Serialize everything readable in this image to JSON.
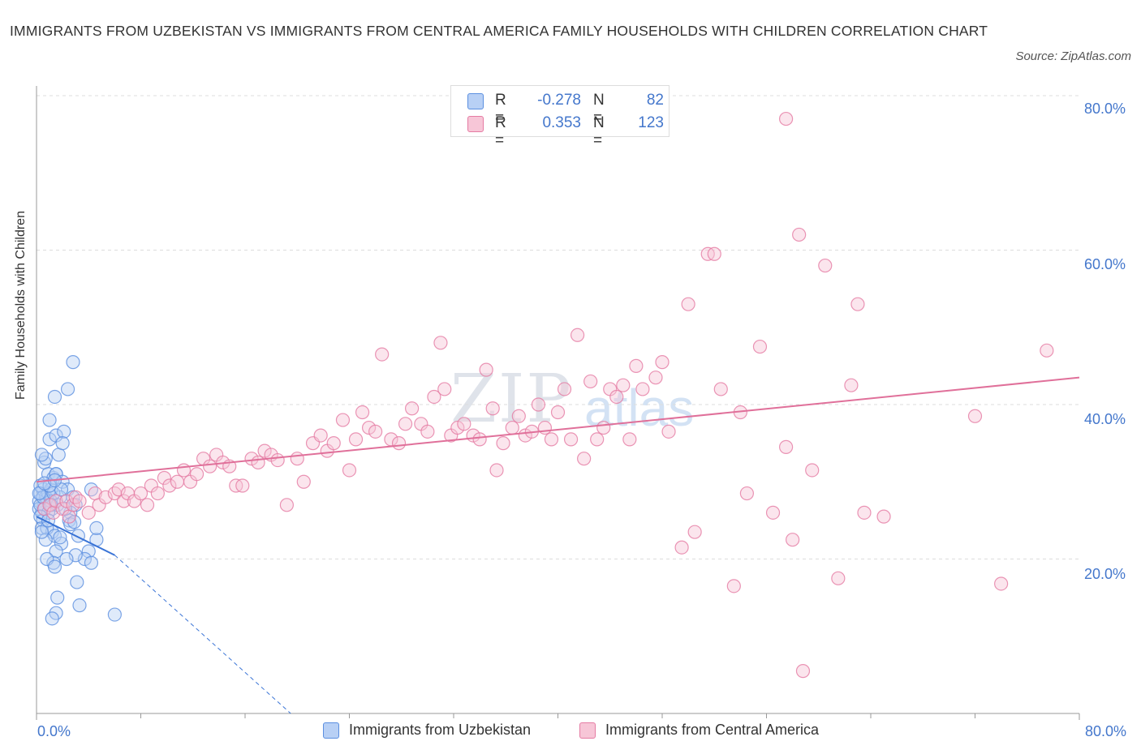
{
  "title": "IMMIGRANTS FROM UZBEKISTAN VS IMMIGRANTS FROM CENTRAL AMERICA FAMILY HOUSEHOLDS WITH CHILDREN CORRELATION CHART",
  "source": "Source: ZipAtlas.com",
  "watermark": {
    "zip": "ZIP",
    "atlas": "atlas"
  },
  "colors": {
    "blue": "#5b8fe0",
    "blue_fill": "#b8d0f5",
    "pink": "#e57ba3",
    "pink_fill": "#f7c6d7",
    "tick": "#4477cc",
    "grid": "#dddddd"
  },
  "legend": {
    "rows": [
      {
        "r_label": "R =",
        "r_value": "-0.278",
        "n_label": "N =",
        "n_value": "82"
      },
      {
        "r_label": "R =",
        "r_value": "0.353",
        "n_label": "N =",
        "n_value": "123"
      }
    ],
    "bottom": [
      "Immigrants from Uzbekistan",
      "Immigrants from Central America"
    ]
  },
  "axes": {
    "ylabel": "Family Households with Children",
    "x_left": "0.0%",
    "x_right": "80.0%",
    "y_ticks": [
      "80.0%",
      "60.0%",
      "40.0%",
      "20.0%"
    ]
  },
  "chart_data": {
    "type": "scatter",
    "xlim": [
      0,
      80
    ],
    "ylim": [
      0,
      80
    ],
    "ylabel": "Family Households with Children",
    "grid": true,
    "legend_placement": "top-center",
    "series": [
      {
        "name": "Immigrants from Uzbekistan",
        "color": "#5b8fe0",
        "trend": {
          "x": [
            0,
            6
          ],
          "y": [
            25.5,
            20.5
          ],
          "dashed_extension_to": [
            19.5,
            0
          ]
        },
        "points": [
          [
            0.2,
            27.5
          ],
          [
            0.3,
            28.5
          ],
          [
            0.4,
            26.0
          ],
          [
            0.5,
            29.0
          ],
          [
            0.6,
            27.0
          ],
          [
            0.7,
            28.0
          ],
          [
            0.3,
            29.5
          ],
          [
            0.2,
            26.5
          ],
          [
            0.5,
            25.0
          ],
          [
            0.8,
            27.8
          ],
          [
            0.4,
            24.0
          ],
          [
            0.9,
            28.5
          ],
          [
            1.0,
            27.0
          ],
          [
            1.2,
            26.5
          ],
          [
            1.1,
            29.0
          ],
          [
            0.6,
            32.5
          ],
          [
            0.7,
            33.0
          ],
          [
            0.4,
            33.5
          ],
          [
            0.9,
            31.0
          ],
          [
            1.3,
            30.5
          ],
          [
            1.5,
            31.0
          ],
          [
            1.7,
            33.5
          ],
          [
            1.0,
            35.5
          ],
          [
            1.5,
            36.0
          ],
          [
            2.1,
            36.5
          ],
          [
            2.0,
            35.0
          ],
          [
            1.0,
            38.0
          ],
          [
            1.4,
            41.0
          ],
          [
            2.4,
            42.0
          ],
          [
            2.8,
            45.5
          ],
          [
            1.5,
            31.0
          ],
          [
            2.0,
            30.0
          ],
          [
            2.4,
            29.0
          ],
          [
            2.8,
            28.0
          ],
          [
            3.0,
            27.0
          ],
          [
            2.6,
            26.0
          ],
          [
            1.8,
            28.0
          ],
          [
            1.2,
            23.5
          ],
          [
            0.8,
            24.0
          ],
          [
            1.4,
            23.0
          ],
          [
            1.9,
            22.0
          ],
          [
            2.5,
            25.0
          ],
          [
            3.2,
            23.0
          ],
          [
            4.6,
            22.5
          ],
          [
            4.6,
            24.0
          ],
          [
            4.0,
            21.0
          ],
          [
            3.7,
            20.0
          ],
          [
            3.0,
            20.5
          ],
          [
            2.3,
            20.0
          ],
          [
            1.5,
            21.0
          ],
          [
            1.3,
            19.5
          ],
          [
            0.8,
            20.0
          ],
          [
            1.4,
            19.0
          ],
          [
            3.1,
            17.0
          ],
          [
            1.6,
            15.0
          ],
          [
            3.3,
            14.0
          ],
          [
            1.5,
            13.0
          ],
          [
            1.2,
            12.3
          ],
          [
            6.0,
            12.8
          ],
          [
            4.2,
            19.5
          ],
          [
            0.3,
            27.0
          ],
          [
            0.6,
            26.5
          ],
          [
            0.9,
            26.0
          ],
          [
            1.1,
            27.5
          ],
          [
            1.6,
            27.0
          ],
          [
            2.2,
            26.5
          ],
          [
            0.5,
            28.0
          ],
          [
            1.3,
            28.5
          ],
          [
            1.9,
            29.0
          ],
          [
            2.6,
            24.5
          ],
          [
            0.7,
            22.5
          ],
          [
            0.4,
            23.5
          ],
          [
            0.2,
            28.5
          ],
          [
            1.0,
            29.5
          ],
          [
            2.9,
            24.8
          ],
          [
            1.8,
            22.8
          ],
          [
            0.6,
            29.8
          ],
          [
            1.4,
            30.2
          ],
          [
            0.3,
            25.5
          ],
          [
            0.9,
            25.0
          ],
          [
            4.2,
            29.0
          ],
          [
            1.1,
            27.0
          ]
        ]
      },
      {
        "name": "Immigrants from Central America",
        "color": "#e57ba3",
        "trend": {
          "x": [
            0,
            80
          ],
          "y": [
            30.0,
            43.5
          ]
        },
        "points": [
          [
            0.6,
            26.5
          ],
          [
            1.0,
            27.0
          ],
          [
            1.3,
            26.0
          ],
          [
            1.5,
            27.5
          ],
          [
            2.0,
            26.5
          ],
          [
            2.3,
            27.5
          ],
          [
            2.5,
            25.5
          ],
          [
            2.8,
            27.0
          ],
          [
            3.0,
            28.0
          ],
          [
            3.3,
            27.5
          ],
          [
            4.0,
            26.0
          ],
          [
            4.5,
            28.5
          ],
          [
            4.8,
            27.0
          ],
          [
            5.3,
            28.0
          ],
          [
            6.0,
            28.5
          ],
          [
            6.3,
            29.0
          ],
          [
            6.7,
            27.5
          ],
          [
            7.0,
            28.5
          ],
          [
            7.5,
            27.5
          ],
          [
            8.0,
            28.5
          ],
          [
            8.5,
            27.0
          ],
          [
            8.8,
            29.5
          ],
          [
            9.3,
            28.5
          ],
          [
            9.8,
            30.5
          ],
          [
            10.2,
            29.5
          ],
          [
            10.8,
            30.0
          ],
          [
            11.3,
            31.5
          ],
          [
            11.8,
            30.0
          ],
          [
            12.3,
            31.0
          ],
          [
            12.8,
            33.0
          ],
          [
            13.3,
            32.0
          ],
          [
            13.8,
            33.5
          ],
          [
            14.3,
            32.5
          ],
          [
            14.8,
            32.0
          ],
          [
            15.3,
            29.5
          ],
          [
            15.8,
            29.5
          ],
          [
            16.5,
            33.0
          ],
          [
            17.0,
            32.5
          ],
          [
            17.5,
            34.0
          ],
          [
            18.0,
            33.5
          ],
          [
            18.5,
            32.8
          ],
          [
            19.2,
            27.0
          ],
          [
            20.0,
            33.0
          ],
          [
            20.5,
            30.0
          ],
          [
            21.2,
            35.0
          ],
          [
            21.8,
            36.0
          ],
          [
            22.3,
            34.0
          ],
          [
            22.8,
            35.0
          ],
          [
            23.5,
            38.0
          ],
          [
            24.0,
            31.5
          ],
          [
            24.5,
            35.5
          ],
          [
            25.0,
            39.0
          ],
          [
            25.5,
            37.0
          ],
          [
            26.0,
            36.5
          ],
          [
            26.5,
            46.5
          ],
          [
            27.2,
            35.5
          ],
          [
            27.8,
            35.0
          ],
          [
            28.3,
            37.5
          ],
          [
            28.8,
            39.5
          ],
          [
            29.5,
            37.5
          ],
          [
            30.0,
            36.5
          ],
          [
            30.5,
            41.0
          ],
          [
            31.0,
            48.0
          ],
          [
            31.3,
            42.0
          ],
          [
            31.8,
            36.0
          ],
          [
            32.3,
            37.0
          ],
          [
            32.8,
            37.5
          ],
          [
            33.5,
            36.0
          ],
          [
            34.0,
            35.5
          ],
          [
            34.5,
            44.5
          ],
          [
            35.0,
            39.5
          ],
          [
            35.3,
            31.5
          ],
          [
            35.8,
            35.0
          ],
          [
            36.5,
            37.0
          ],
          [
            37.0,
            38.5
          ],
          [
            37.5,
            36.0
          ],
          [
            38.0,
            36.5
          ],
          [
            38.5,
            40.0
          ],
          [
            39.0,
            37.0
          ],
          [
            39.5,
            35.5
          ],
          [
            40.0,
            39.0
          ],
          [
            40.5,
            42.0
          ],
          [
            41.0,
            35.5
          ],
          [
            41.5,
            49.0
          ],
          [
            42.0,
            33.0
          ],
          [
            42.5,
            43.0
          ],
          [
            43.0,
            35.5
          ],
          [
            43.5,
            37.0
          ],
          [
            44.0,
            42.0
          ],
          [
            44.5,
            41.0
          ],
          [
            45.0,
            42.5
          ],
          [
            45.5,
            35.5
          ],
          [
            46.0,
            45.0
          ],
          [
            46.5,
            42.0
          ],
          [
            47.5,
            43.5
          ],
          [
            48.0,
            45.5
          ],
          [
            48.5,
            36.5
          ],
          [
            49.5,
            21.5
          ],
          [
            50.0,
            53.0
          ],
          [
            50.5,
            23.5
          ],
          [
            51.5,
            59.5
          ],
          [
            52.0,
            59.5
          ],
          [
            52.5,
            42.0
          ],
          [
            53.5,
            16.5
          ],
          [
            54.0,
            39.0
          ],
          [
            54.5,
            28.5
          ],
          [
            55.5,
            47.5
          ],
          [
            56.5,
            26.0
          ],
          [
            57.5,
            34.5
          ],
          [
            58.0,
            22.5
          ],
          [
            58.5,
            62.0
          ],
          [
            59.5,
            31.5
          ],
          [
            60.5,
            58.0
          ],
          [
            61.5,
            17.5
          ],
          [
            62.5,
            42.5
          ],
          [
            63.0,
            53.0
          ],
          [
            63.5,
            26.0
          ],
          [
            65.0,
            25.5
          ],
          [
            57.5,
            77.0
          ],
          [
            72.0,
            38.5
          ],
          [
            74.0,
            16.8
          ],
          [
            77.5,
            47.0
          ],
          [
            58.8,
            5.5
          ]
        ]
      }
    ]
  }
}
